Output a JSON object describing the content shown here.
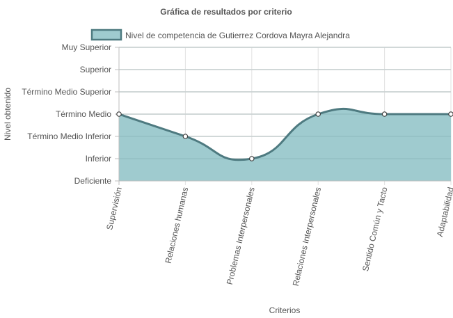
{
  "chart_data": {
    "type": "area",
    "title": "Gráfica de resultados por criterio",
    "xlabel": "Criterios",
    "ylabel": "Nivel obtenido",
    "categories": [
      "Supervisión",
      "Relaciones humanas",
      "Problemas Interpersonales",
      "Relaciones Interpersonales",
      "Sentido Común y Tacto",
      "Adaptabilidad"
    ],
    "y_levels": [
      "Deficiente",
      "Inferior",
      "Término Medio Inferior",
      "Término Medio",
      "Término Medio Superior",
      "Superior",
      "Muy Superior"
    ],
    "ylim": [
      0,
      6
    ],
    "series": [
      {
        "name": "Nivel de competencia de Gutierrez Cordova Mayra Alejandra",
        "values": [
          3,
          2,
          1,
          3,
          3,
          3
        ],
        "value_labels": [
          "Término Medio",
          "Término Medio Inferior",
          "Inferior",
          "Término Medio",
          "Término Medio",
          "Término Medio"
        ]
      }
    ],
    "grid": true,
    "legend_position": "top",
    "colors": {
      "fill": "#9fcbcf",
      "line": "#4e7a80",
      "grid": "#bfbfbf",
      "point_fill": "#ffffff",
      "point_stroke": "#3e3e3e"
    }
  }
}
